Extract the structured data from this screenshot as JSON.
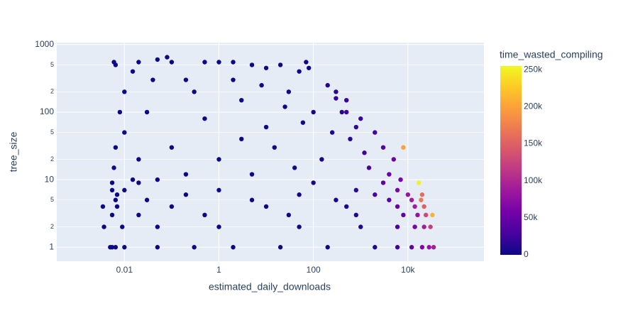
{
  "chart_data": {
    "type": "scatter",
    "x_label": "estimated_daily_downloads",
    "y_label": "tree_size",
    "x_log": true,
    "y_log": true,
    "xlim": [
      0.00037,
      407000
    ],
    "ylim": [
      0.62,
      1070
    ],
    "xticks": [
      0.01,
      1,
      100,
      {
        "value": 10000,
        "label": "10k"
      }
    ],
    "yticks": [
      1,
      {
        "value": 2,
        "label": "2"
      },
      {
        "value": 5,
        "label": "5"
      },
      10,
      {
        "value": 20,
        "label": "2"
      },
      {
        "value": 50,
        "label": "5"
      },
      100,
      {
        "value": 200,
        "label": "2"
      },
      {
        "value": 500,
        "label": "5"
      },
      1000
    ],
    "grid": true,
    "x": [
      0.005,
      0.0055,
      0.0065,
      0.01,
      0.05,
      0.3,
      2,
      20,
      200,
      2000,
      6000,
      12000,
      20000,
      28000,
      35000,
      0.0037,
      0.009,
      0.05,
      1,
      50,
      1000,
      6000,
      14000,
      22000,
      30000,
      0.0055,
      0.02,
      0.5,
      30,
      800,
      8000,
      16000,
      24000,
      33000,
      0.0035,
      0.007,
      0.1,
      10,
      500,
      6000,
      14000,
      22000,
      0.0065,
      0.03,
      5,
      300,
      4000,
      12000,
      19000,
      0.007,
      0.2,
      50,
      2000,
      10000,
      20000,
      0.0055,
      0.01,
      1,
      800,
      6000,
      0.0055,
      0.02,
      100,
      3000,
      17000,
      0.006,
      0.0065,
      0.006,
      0.0065,
      0.01,
      0.015,
      0.02,
      0.03,
      0.05,
      0.08,
      0.1,
      0.2,
      0.5,
      1,
      2,
      5,
      10,
      20,
      50,
      70,
      80,
      0.01,
      0.02,
      0.1,
      0.5,
      1,
      3,
      10,
      30,
      100,
      200,
      300,
      500,
      1000,
      2000,
      3000,
      5000,
      8000,
      1500,
      600,
      250,
      150,
      40,
      5,
      0.05,
      0.3,
      3,
      15,
      60,
      400,
      800,
      1200,
      4000,
      7000,
      300,
      500,
      0.008,
      0.015,
      0.04,
      0.2,
      2,
      8,
      25
    ],
    "y": [
      1,
      1,
      1,
      1,
      1,
      1,
      1,
      1,
      1,
      1,
      1,
      1,
      1,
      1,
      1,
      2,
      2,
      2,
      2,
      2,
      2,
      2,
      2,
      2,
      2,
      3,
      3,
      3,
      3,
      3,
      3,
      3,
      3,
      3,
      4,
      4,
      4,
      4,
      4,
      4,
      4,
      4,
      5,
      5,
      5,
      5,
      5,
      5,
      5,
      6,
      6,
      6,
      6,
      6,
      6,
      7,
      7,
      7,
      7,
      7,
      9,
      9,
      9,
      9,
      9,
      15,
      30,
      550,
      500,
      200,
      400,
      550,
      100,
      600,
      650,
      550,
      300,
      550,
      550,
      550,
      500,
      450,
      500,
      400,
      550,
      450,
      50,
      20,
      30,
      80,
      20,
      150,
      60,
      200,
      100,
      250,
      200,
      150,
      80,
      50,
      30,
      20,
      30,
      15,
      40,
      50,
      20,
      15,
      12,
      10,
      200,
      40,
      30,
      70,
      100,
      60,
      25,
      12,
      10,
      160,
      100,
      100,
      10,
      300,
      12,
      300,
      250,
      120
    ],
    "marker_color": [
      0,
      0,
      0,
      0,
      0,
      0,
      0,
      500,
      2000,
      8000,
      25000,
      45000,
      65000,
      80000,
      90000,
      0,
      0,
      0,
      0,
      1000,
      8000,
      30000,
      60000,
      90000,
      120000,
      0,
      0,
      0,
      1000,
      10000,
      45000,
      80000,
      130000,
      210000,
      0,
      0,
      0,
      500,
      8000,
      50000,
      90000,
      150000,
      0,
      0,
      200,
      6000,
      40000,
      90000,
      170000,
      0,
      0,
      2000,
      30000,
      80000,
      160000,
      0,
      0,
      0,
      15000,
      60000,
      0,
      0,
      5000,
      45000,
      250000,
      0,
      0,
      0,
      0,
      0,
      0,
      0,
      0,
      0,
      0,
      0,
      0,
      0,
      0,
      0,
      0,
      0,
      500,
      1000,
      1000,
      1000,
      0,
      0,
      0,
      0,
      0,
      0,
      200,
      2000,
      4000,
      10000,
      15000,
      20000,
      20000,
      30000,
      40000,
      50000,
      200000,
      30000,
      15000,
      8000,
      3000,
      800,
      0,
      0,
      0,
      0,
      300,
      1500,
      12000,
      18000,
      25000,
      50000,
      60000,
      20000,
      25000,
      0,
      0,
      0,
      0,
      0,
      0,
      500
    ],
    "colorscale": [
      "#0d0887",
      "#46039f",
      "#7201a8",
      "#9c179e",
      "#bd3786",
      "#d8576b",
      "#ed7953",
      "#fb9f3a",
      "#fdca26",
      "#f0f921"
    ],
    "colorbar": {
      "title": "time_wasted_compiling",
      "cmin": 0,
      "cmax": 255000,
      "ticks": [
        0,
        {
          "value": 50000,
          "label": "50k"
        },
        {
          "value": 100000,
          "label": "100k"
        },
        {
          "value": 150000,
          "label": "150k"
        },
        {
          "value": 200000,
          "label": "200k"
        },
        {
          "value": 250000,
          "label": "250k"
        }
      ]
    }
  }
}
